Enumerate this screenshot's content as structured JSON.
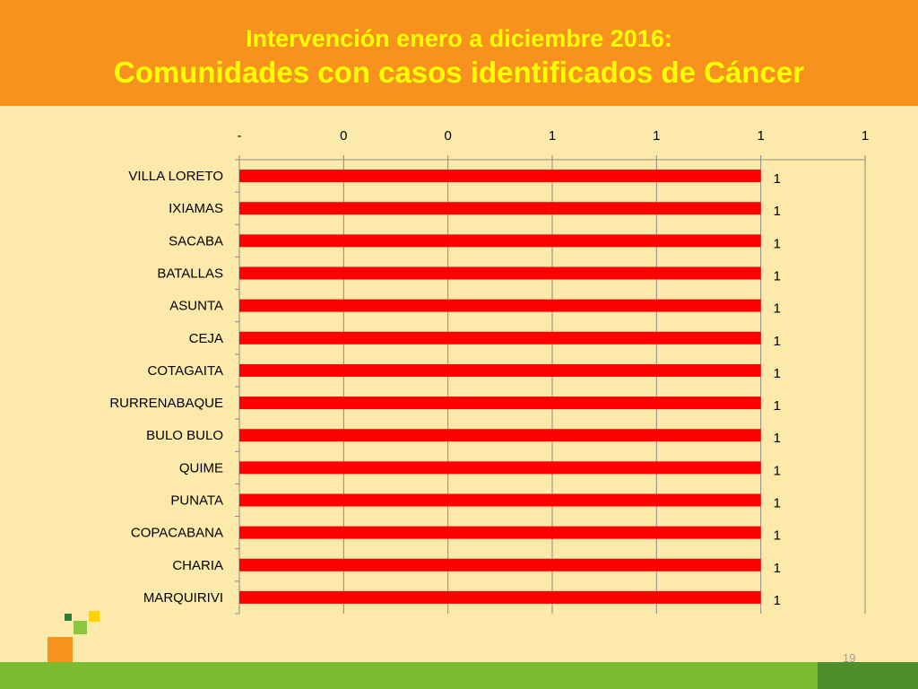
{
  "header": {
    "subtitle": "Intervención enero a diciembre 2016:",
    "title": "Comunidades con casos identificados  de Cáncer"
  },
  "page_number": "19",
  "colors": {
    "header_bg": "#f7921e",
    "title_text": "#ffff00",
    "slide_bg": "#fde9a9",
    "bar": "#ff0000",
    "bottom_bar": "#7bbb2f"
  },
  "chart_data": {
    "type": "bar",
    "orientation": "horizontal",
    "title": "",
    "xlabel": "",
    "ylabel": "",
    "x_tick_labels": [
      "-",
      "0",
      "0",
      "1",
      "1",
      "1",
      "1"
    ],
    "xlim": [
      0,
      1.2
    ],
    "grid": "vertical",
    "legend": "none",
    "categories": [
      "VILLA LORETO",
      "IXIAMAS",
      "SACABA",
      "BATALLAS",
      "ASUNTA",
      "CEJA",
      "COTAGAITA",
      "RURRENABAQUE",
      "BULO BULO",
      "QUIME",
      "PUNATA",
      "COPACABANA",
      "CHARIA",
      "MARQUIRIVI"
    ],
    "values": [
      1,
      1,
      1,
      1,
      1,
      1,
      1,
      1,
      1,
      1,
      1,
      1,
      1,
      1
    ],
    "data_labels": [
      "1",
      "1",
      "1",
      "1",
      "1",
      "1",
      "1",
      "1",
      "1",
      "1",
      "1",
      "1",
      "1",
      "1"
    ]
  }
}
